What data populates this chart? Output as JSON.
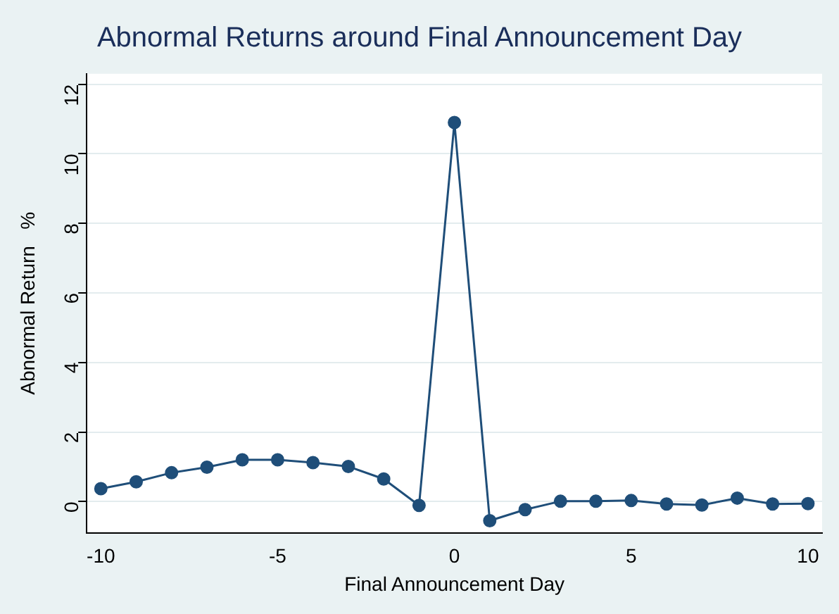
{
  "chart_data": {
    "type": "line",
    "title": "Abnormal Returns around Final Announcement Day",
    "xlabel": "Final Announcement Day",
    "ylabel": "Abnormal Return   %",
    "x": [
      -10,
      -9,
      -8,
      -7,
      -6,
      -5,
      -4,
      -3,
      -2,
      -1,
      0,
      1,
      2,
      3,
      4,
      5,
      6,
      7,
      8,
      9,
      10
    ],
    "series": [
      {
        "color": "#1f4e79",
        "values": [
          0.37,
          0.57,
          0.83,
          0.99,
          1.2,
          1.2,
          1.12,
          1.01,
          0.65,
          -0.11,
          10.9,
          -0.55,
          -0.23,
          0.01,
          0.01,
          0.03,
          -0.07,
          -0.1,
          0.1,
          -0.07,
          -0.06
        ]
      }
    ],
    "xlim": [
      -10.4,
      10.4
    ],
    "xticks": [
      -10,
      -5,
      0,
      5,
      10
    ],
    "ylim": [
      -0.9,
      12.3
    ],
    "yticks": [
      0,
      2,
      4,
      6,
      8,
      10,
      12
    ],
    "grid": "y",
    "legend": false,
    "marker": "circle",
    "line_style": "solid"
  }
}
